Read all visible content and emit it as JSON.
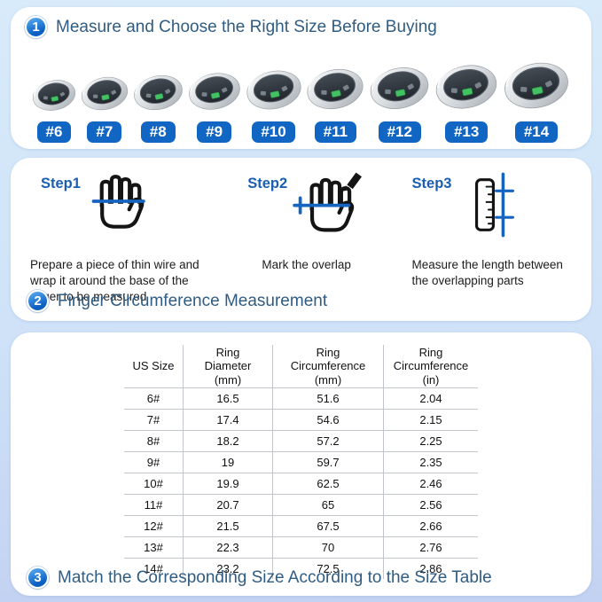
{
  "colors": {
    "background_top": "#d8ebfa",
    "background_bottom": "#c3d2f2",
    "accent_label_blue": "#1266c3",
    "badge_blue": "#0b5fc0",
    "heading_blue": "#2f5c82",
    "step_title_blue": "#1a5fb0",
    "measure_line_blue": "#1565c0",
    "sensor_green": "#43c163"
  },
  "section1": {
    "badge": "1",
    "title": "Measure and Choose the Right Size Before Buying",
    "rings": [
      {
        "label": "#6",
        "relative_size": 54
      },
      {
        "label": "#7",
        "relative_size": 58
      },
      {
        "label": "#8",
        "relative_size": 61
      },
      {
        "label": "#9",
        "relative_size": 64
      },
      {
        "label": "#10",
        "relative_size": 68
      },
      {
        "label": "#11",
        "relative_size": 70
      },
      {
        "label": "#12",
        "relative_size": 73
      },
      {
        "label": "#13",
        "relative_size": 76
      },
      {
        "label": "#14",
        "relative_size": 80
      }
    ]
  },
  "section2": {
    "steps": [
      {
        "title": "Step1",
        "icon": "hand-wire-icon",
        "description": "Prepare a piece of thin wire and wrap it around the base of the finger to be measured"
      },
      {
        "title": "Step2",
        "icon": "hand-mark-pencil-icon",
        "description": "Mark the overlap"
      },
      {
        "title": "Step3",
        "icon": "ruler-measure-icon",
        "description": "Measure the length between the overlapping parts"
      }
    ],
    "badge": "2",
    "heading": "Finger Circumference Measurement"
  },
  "section3": {
    "table": {
      "headers": [
        "US Size",
        "Ring\nDiameter\n(mm)",
        "Ring\nCircumference\n(mm)",
        "Ring\nCircumference\n(in)"
      ],
      "rows": [
        [
          "6#",
          "16.5",
          "51.6",
          "2.04"
        ],
        [
          "7#",
          "17.4",
          "54.6",
          "2.15"
        ],
        [
          "8#",
          "18.2",
          "57.2",
          "2.25"
        ],
        [
          "9#",
          "19",
          "59.7",
          "2.35"
        ],
        [
          "10#",
          "19.9",
          "62.5",
          "2.46"
        ],
        [
          "11#",
          "20.7",
          "65",
          "2.56"
        ],
        [
          "12#",
          "21.5",
          "67.5",
          "2.66"
        ],
        [
          "13#",
          "22.3",
          "70",
          "2.76"
        ],
        [
          "14#",
          "23.2",
          "72.5",
          "2.86"
        ]
      ]
    },
    "badge": "3",
    "heading": "Match the Corresponding Size According to the Size Table"
  }
}
